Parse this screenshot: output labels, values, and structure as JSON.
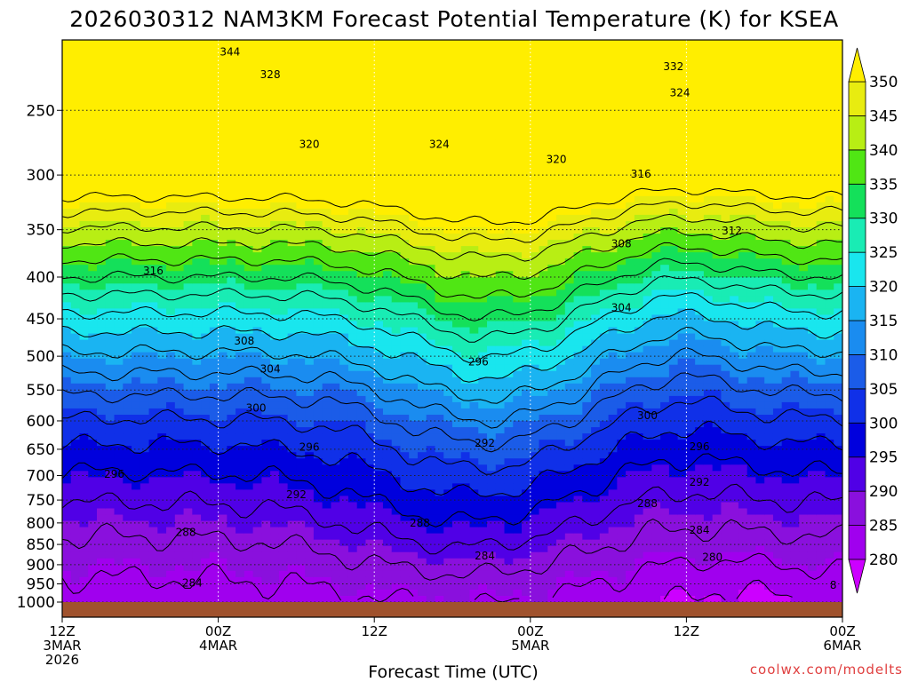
{
  "chart_data": {
    "type": "heatmap",
    "title": "2026030312 NAM3KM Forecast Potential Temperature (K) for KSEA",
    "xlabel": "Forecast Time (UTC)",
    "ylabel": "",
    "credit": "coolwx.com/modelts",
    "x_ticks": [
      {
        "lines": [
          "12Z",
          "3MAR",
          "2026"
        ],
        "hour": 0
      },
      {
        "lines": [
          "00Z",
          "4MAR"
        ],
        "hour": 12
      },
      {
        "lines": [
          "12Z"
        ],
        "hour": 24
      },
      {
        "lines": [
          "00Z",
          "5MAR"
        ],
        "hour": 36
      },
      {
        "lines": [
          "12Z"
        ],
        "hour": 48
      },
      {
        "lines": [
          "00Z",
          "6MAR"
        ],
        "hour": 60
      }
    ],
    "xlim_hours": [
      0,
      60
    ],
    "y_ticks_hpa": [
      250,
      300,
      350,
      400,
      450,
      500,
      550,
      600,
      650,
      700,
      750,
      800,
      850,
      900,
      950,
      1000
    ],
    "ylim_hpa": [
      205,
      1000
    ],
    "colorbar": {
      "levels": [
        280,
        285,
        290,
        295,
        300,
        305,
        310,
        315,
        320,
        325,
        330,
        335,
        340,
        345,
        350
      ],
      "colors": [
        "#cc00ff",
        "#a000ee",
        "#8a10dd",
        "#5000e6",
        "#0000dd",
        "#1030e8",
        "#1b5ce8",
        "#1a8cf0",
        "#1ab4f2",
        "#19e6ee",
        "#19ecb4",
        "#14e05a",
        "#50e614",
        "#b8ee14",
        "#e8ec10",
        "#ffee00"
      ]
    },
    "contour_labels": [
      {
        "text": "344",
        "hour": 12.9,
        "hpa": 212
      },
      {
        "text": "328",
        "hour": 16.0,
        "hpa": 226
      },
      {
        "text": "332",
        "hour": 47.0,
        "hpa": 221
      },
      {
        "text": "324",
        "hour": 47.5,
        "hpa": 238
      },
      {
        "text": "320",
        "hour": 19.0,
        "hpa": 275
      },
      {
        "text": "324",
        "hour": 29.0,
        "hpa": 275
      },
      {
        "text": "320",
        "hour": 38.0,
        "hpa": 287
      },
      {
        "text": "316",
        "hour": 44.5,
        "hpa": 299
      },
      {
        "text": "312",
        "hour": 51.5,
        "hpa": 351
      },
      {
        "text": "316",
        "hour": 7.0,
        "hpa": 393
      },
      {
        "text": "308",
        "hour": 43.0,
        "hpa": 364
      },
      {
        "text": "304",
        "hour": 43.0,
        "hpa": 436
      },
      {
        "text": "308",
        "hour": 14.0,
        "hpa": 479
      },
      {
        "text": "304",
        "hour": 16.0,
        "hpa": 518
      },
      {
        "text": "296",
        "hour": 32.0,
        "hpa": 508
      },
      {
        "text": "300",
        "hour": 14.9,
        "hpa": 579
      },
      {
        "text": "300",
        "hour": 45.0,
        "hpa": 591
      },
      {
        "text": "296",
        "hour": 19.0,
        "hpa": 646
      },
      {
        "text": "292",
        "hour": 32.5,
        "hpa": 639
      },
      {
        "text": "296",
        "hour": 49.0,
        "hpa": 645
      },
      {
        "text": "296",
        "hour": 4.0,
        "hpa": 697
      },
      {
        "text": "292",
        "hour": 18.0,
        "hpa": 739
      },
      {
        "text": "292",
        "hour": 49.0,
        "hpa": 713
      },
      {
        "text": "288",
        "hour": 45.0,
        "hpa": 757
      },
      {
        "text": "288",
        "hour": 27.5,
        "hpa": 800
      },
      {
        "text": "288",
        "hour": 9.5,
        "hpa": 822
      },
      {
        "text": "284",
        "hour": 49.0,
        "hpa": 816
      },
      {
        "text": "284",
        "hour": 32.5,
        "hpa": 878
      },
      {
        "text": "280",
        "hour": 50.0,
        "hpa": 881
      },
      {
        "text": "284",
        "hour": 10.0,
        "hpa": 948
      },
      {
        "text": "8",
        "hour": 59.3,
        "hpa": 953
      }
    ]
  }
}
